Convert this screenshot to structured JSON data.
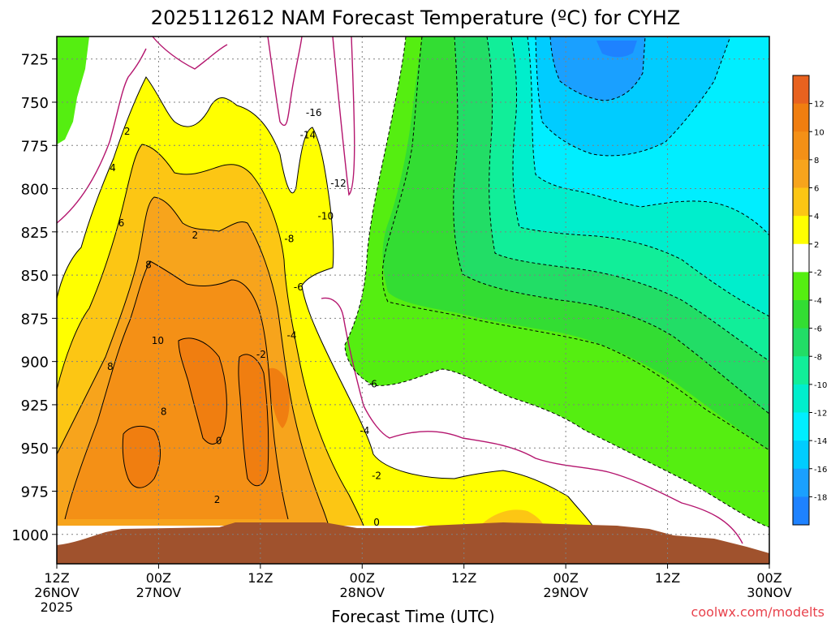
{
  "chart_data": {
    "type": "heatmap",
    "title": "2025112612 NAM Forecast Temperature (ºC) for CYHZ",
    "xlabel": "Forecast Time (UTC)",
    "ylabel": "",
    "x_ticks": [
      {
        "hour": 0,
        "label": "12Z",
        "sub1": "26NOV",
        "sub2": "2025"
      },
      {
        "hour": 12,
        "label": "00Z",
        "sub1": "27NOV",
        "sub2": ""
      },
      {
        "hour": 24,
        "label": "12Z",
        "sub1": "",
        "sub2": ""
      },
      {
        "hour": 36,
        "label": "00Z",
        "sub1": "28NOV",
        "sub2": ""
      },
      {
        "hour": 48,
        "label": "12Z",
        "sub1": "",
        "sub2": ""
      },
      {
        "hour": 60,
        "label": "00Z",
        "sub1": "29NOV",
        "sub2": ""
      },
      {
        "hour": 72,
        "label": "12Z",
        "sub1": "",
        "sub2": ""
      },
      {
        "hour": 84,
        "label": "00Z",
        "sub1": "30NOV",
        "sub2": ""
      }
    ],
    "x_range_hours": [
      0,
      84
    ],
    "y_ticks": [
      725,
      750,
      775,
      800,
      825,
      850,
      875,
      900,
      925,
      950,
      975,
      1000
    ],
    "y_range_hPa": [
      712,
      1017
    ],
    "colorbar": {
      "labels": [
        "12",
        "10",
        "8",
        "6",
        "4",
        "2",
        "-2",
        "-4",
        "-6",
        "-8",
        "-10",
        "-12",
        "-14",
        "-16",
        "-18"
      ],
      "colors": [
        "#e8621f",
        "#f07e10",
        "#f49016",
        "#f7a41c",
        "#fcc614",
        "#ffff00",
        "#ffffff",
        "#55ee11",
        "#33dd33",
        "#22dd66",
        "#11ee99",
        "#00eecc",
        "#00eeff",
        "#00ccff",
        "#1aa0ff",
        "#1e82ff"
      ]
    },
    "terrain_color": "#a0522d",
    "contour_labels": [
      {
        "text": "2",
        "hour": 8.3,
        "hPa": 767
      },
      {
        "text": "4",
        "hour": 6.6,
        "hPa": 788
      },
      {
        "text": "6",
        "hour": 7.6,
        "hPa": 820
      },
      {
        "text": "8",
        "hour": 10.8,
        "hPa": 844
      },
      {
        "text": "10",
        "hour": 11.9,
        "hPa": 888
      },
      {
        "text": "8",
        "hour": 6.3,
        "hPa": 903
      },
      {
        "text": "8",
        "hour": 12.6,
        "hPa": 929
      },
      {
        "text": "2",
        "hour": 16.3,
        "hPa": 827
      },
      {
        "text": "-2",
        "hour": 24.1,
        "hPa": 896
      },
      {
        "text": "0",
        "hour": 19.1,
        "hPa": 946
      },
      {
        "text": "2",
        "hour": 18.9,
        "hPa": 980
      },
      {
        "text": "-4",
        "hour": 27.7,
        "hPa": 885
      },
      {
        "text": "-6",
        "hour": 28.5,
        "hPa": 857
      },
      {
        "text": "-8",
        "hour": 27.4,
        "hPa": 829
      },
      {
        "text": "-10",
        "hour": 31.7,
        "hPa": 816
      },
      {
        "text": "-12",
        "hour": 33.2,
        "hPa": 797
      },
      {
        "text": "-14",
        "hour": 29.6,
        "hPa": 769
      },
      {
        "text": "-16",
        "hour": 30.3,
        "hPa": 756
      },
      {
        "text": "-6",
        "hour": 37.2,
        "hPa": 913
      },
      {
        "text": "-4",
        "hour": 36.3,
        "hPa": 940
      },
      {
        "text": "-2",
        "hour": 37.7,
        "hPa": 966
      },
      {
        "text": "0",
        "hour": 37.7,
        "hPa": 993
      }
    ]
  },
  "credit": "coolwx.com/modelts"
}
